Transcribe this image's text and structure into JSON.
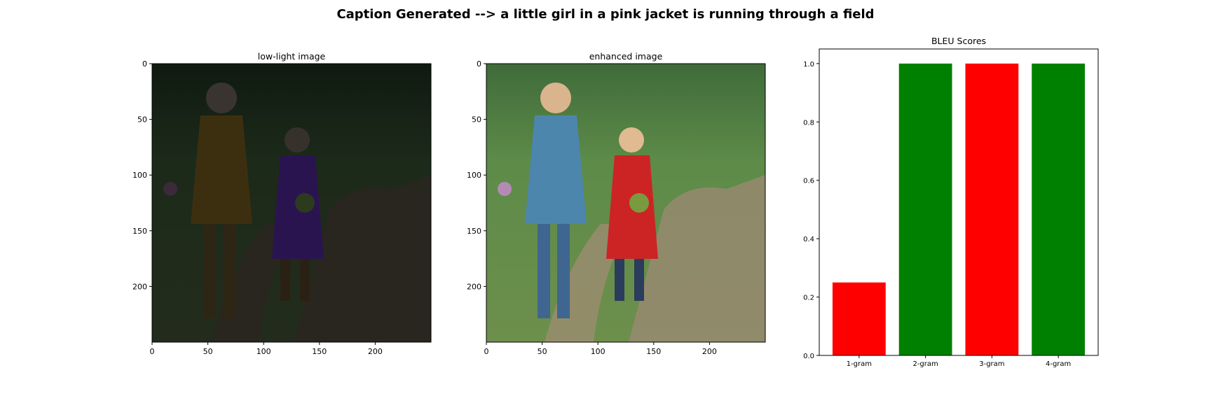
{
  "figure": {
    "suptitle": "Caption Generated --> a little girl in a pink jacket is running through a field"
  },
  "chart_data": [
    {
      "type": "image",
      "title": "low-light image",
      "xlim": [
        0,
        250
      ],
      "ylim": [
        250,
        0
      ],
      "xticks": [
        "0",
        "50",
        "100",
        "150",
        "200"
      ],
      "yticks": [
        "0",
        "50",
        "100",
        "150",
        "200"
      ],
      "tone": "dark"
    },
    {
      "type": "image",
      "title": "enhanced image",
      "xlim": [
        0,
        250
      ],
      "ylim": [
        250,
        0
      ],
      "xticks": [
        "0",
        "50",
        "100",
        "150",
        "200"
      ],
      "yticks": [
        "0",
        "50",
        "100",
        "150",
        "200"
      ],
      "tone": "bright"
    },
    {
      "type": "bar",
      "title": "BLEU Scores",
      "categories": [
        "1-gram",
        "2-gram",
        "3-gram",
        "4-gram"
      ],
      "values": [
        0.25,
        1.0,
        1.0,
        1.0
      ],
      "colors": [
        "#ff0000",
        "#008000",
        "#ff0000",
        "#008000"
      ],
      "ylim": [
        0,
        1.05
      ],
      "yticks": [
        "0.0",
        "0.2",
        "0.4",
        "0.6",
        "0.8",
        "1.0"
      ],
      "xlabel": "",
      "ylabel": ""
    }
  ]
}
